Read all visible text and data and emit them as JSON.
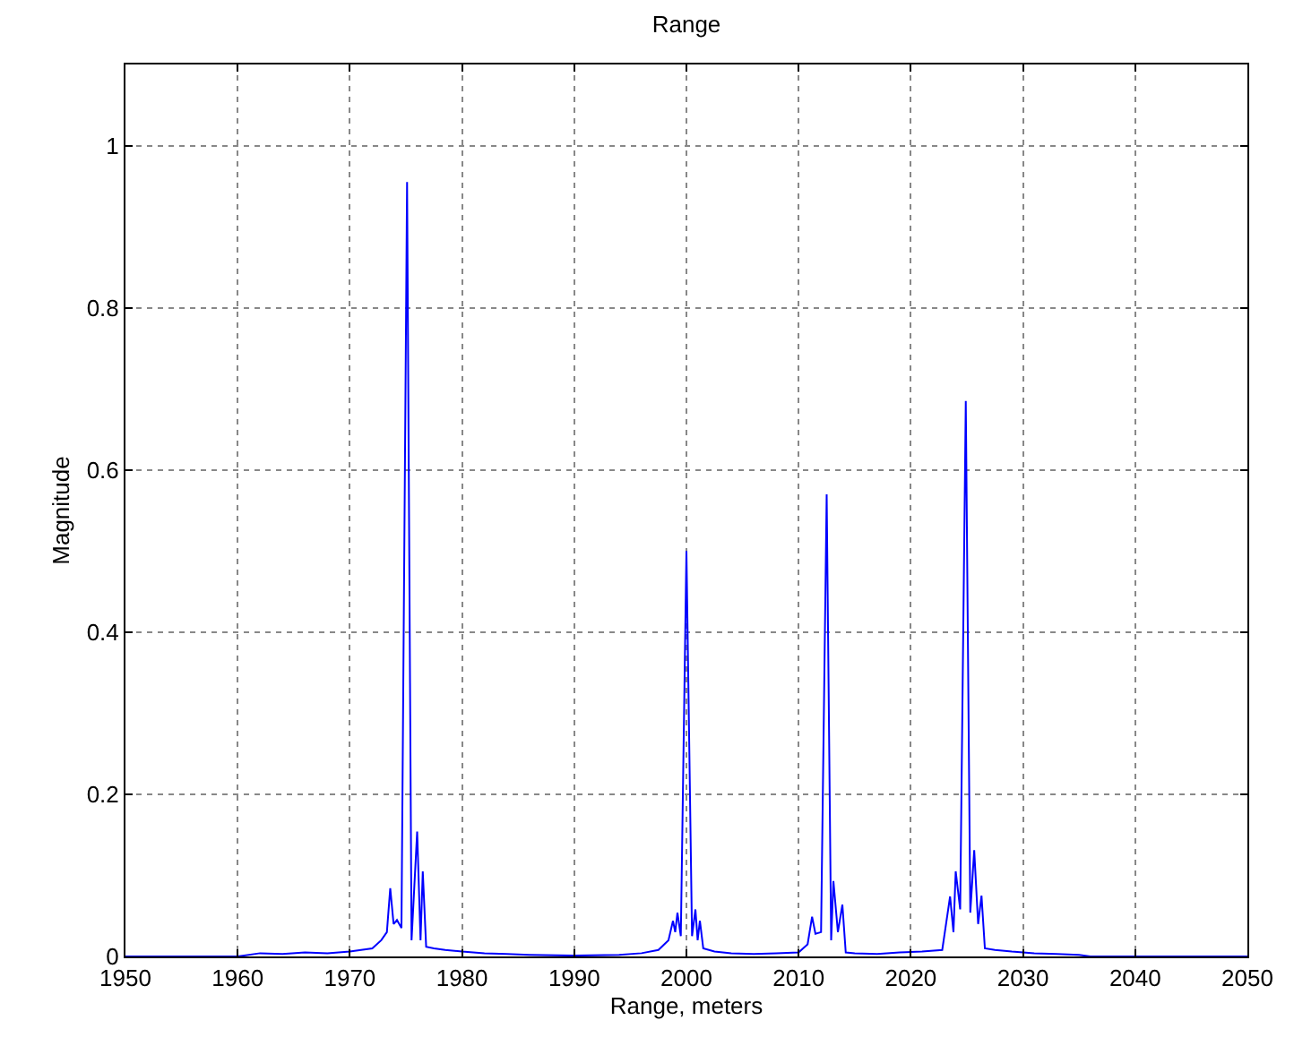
{
  "chart_data": {
    "type": "line",
    "title": "Range",
    "xlabel": "Range, meters",
    "ylabel": "Magnitude",
    "xlim": [
      1950,
      2050
    ],
    "xticks": [
      1950,
      1960,
      1970,
      1980,
      1990,
      2000,
      2010,
      2020,
      2030,
      2040,
      2050
    ],
    "ylim": [
      0,
      1.1
    ],
    "yticks": [
      0,
      0.2,
      0.4,
      0.6,
      0.8,
      1
    ],
    "grid": true,
    "marker": "none",
    "line_style": "solid",
    "series": [
      {
        "color": "#0000ff",
        "x": [
          1950,
          1960,
          1962,
          1964,
          1966,
          1968,
          1970,
          1971,
          1972,
          1972.8,
          1973.3,
          1973.6,
          1973.9,
          1974.2,
          1974.6,
          1975.1,
          1975.5,
          1976.0,
          1976.3,
          1976.5,
          1976.8,
          1977.5,
          1978.5,
          1980,
          1982,
          1984,
          1986,
          1990,
          1994,
          1996,
          1997.5,
          1998.4,
          1998.8,
          1999.0,
          1999.2,
          1999.5,
          2000.0,
          2000.5,
          2000.8,
          2001.0,
          2001.2,
          2001.5,
          2002.5,
          2004,
          2006,
          2008,
          2010,
          2010.8,
          2011.2,
          2011.5,
          2012.0,
          2012.5,
          2012.9,
          2013.1,
          2013.5,
          2013.9,
          2014.2,
          2015,
          2017,
          2019,
          2021,
          2022.8,
          2023.5,
          2023.8,
          2024.0,
          2024.4,
          2024.9,
          2025.3,
          2025.65,
          2026.0,
          2026.3,
          2026.6,
          2027.5,
          2029,
          2031,
          2033,
          2035,
          2036,
          2050
        ],
        "values": [
          0,
          0,
          0.004,
          0.003,
          0.005,
          0.004,
          0.006,
          0.008,
          0.01,
          0.02,
          0.03,
          0.084,
          0.04,
          0.045,
          0.035,
          0.955,
          0.02,
          0.154,
          0.02,
          0.105,
          0.012,
          0.01,
          0.008,
          0.006,
          0.004,
          0.003,
          0.002,
          0.001,
          0.002,
          0.004,
          0.008,
          0.02,
          0.044,
          0.03,
          0.054,
          0.025,
          0.5,
          0.025,
          0.058,
          0.02,
          0.044,
          0.01,
          0.006,
          0.004,
          0.003,
          0.004,
          0.005,
          0.015,
          0.049,
          0.028,
          0.03,
          0.57,
          0.02,
          0.093,
          0.03,
          0.064,
          0.005,
          0.004,
          0.003,
          0.005,
          0.006,
          0.008,
          0.074,
          0.03,
          0.105,
          0.058,
          0.685,
          0.054,
          0.131,
          0.04,
          0.075,
          0.01,
          0.008,
          0.006,
          0.004,
          0.003,
          0.002,
          0,
          0
        ]
      }
    ]
  }
}
